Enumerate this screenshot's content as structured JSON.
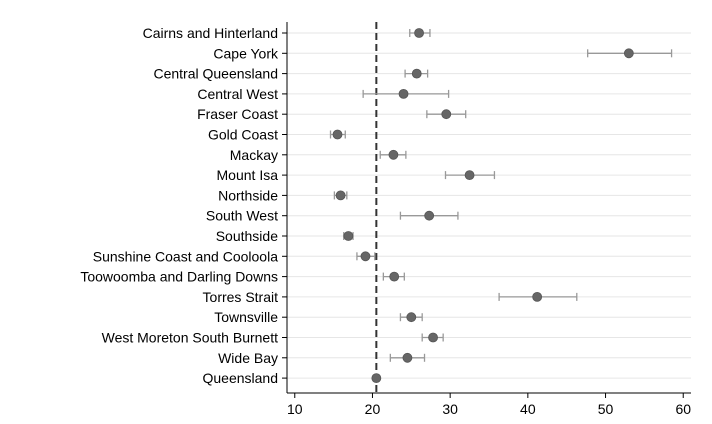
{
  "chart_data": {
    "type": "scatter",
    "orientation": "horizontal",
    "title": "",
    "xlabel": "",
    "ylabel": "",
    "xlim": [
      9,
      61
    ],
    "x_ticks": [
      10,
      20,
      30,
      40,
      50,
      60
    ],
    "reference_line": {
      "value": 20.5,
      "style": "dashed"
    },
    "grid": true,
    "legend": "none",
    "marker_color": "#666666",
    "errorbar_color": "#999999",
    "categories": [
      "Cairns and Hinterland",
      "Cape York",
      "Central Queensland",
      "Central West",
      "Fraser Coast",
      "Gold Coast",
      "Mackay",
      "Mount Isa",
      "Northside",
      "South West",
      "Southside",
      "Sunshine Coast and Cooloola",
      "Toowoomba and Darling Downs",
      "Torres Strait",
      "Townsville",
      "West Moreton South Burnett",
      "Wide Bay",
      "Queensland"
    ],
    "values": [
      26.0,
      53.0,
      25.7,
      24.0,
      29.5,
      15.5,
      22.7,
      32.5,
      15.9,
      27.3,
      16.9,
      19.1,
      22.8,
      41.2,
      25.0,
      27.8,
      24.5,
      20.5
    ],
    "lower": [
      24.8,
      47.7,
      24.2,
      18.8,
      27.0,
      14.6,
      21.0,
      29.4,
      15.1,
      23.6,
      16.3,
      18.0,
      21.4,
      36.3,
      23.6,
      26.4,
      22.3,
      20.3
    ],
    "upper": [
      27.4,
      58.5,
      27.1,
      29.8,
      32.0,
      16.5,
      24.3,
      35.7,
      16.7,
      31.0,
      17.5,
      20.3,
      24.1,
      46.3,
      26.4,
      29.1,
      26.7,
      20.7
    ]
  }
}
